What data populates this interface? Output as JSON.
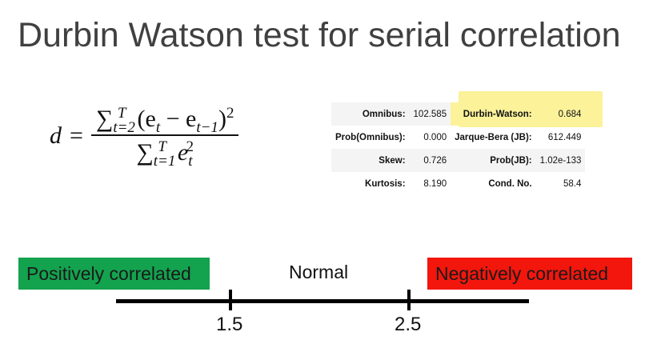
{
  "title": "Durbin Watson test for serial correlation",
  "formula": {
    "lhs": "d",
    "eq": "=",
    "num_sum_low": "t=2",
    "num_sum_high": "T",
    "num_expr_a": "(e",
    "num_expr_a_sub": "t",
    "num_minus": " − e",
    "num_expr_b_sub": "t−1",
    "num_close": ")",
    "num_pow": "2",
    "den_sum_low": "t=1",
    "den_sum_high": "T",
    "den_e": "e",
    "den_sub": "t",
    "den_pow": "2"
  },
  "stats": {
    "rows": [
      {
        "k1": "Omnibus:",
        "v1": "102.585",
        "k2": "Durbin-Watson:",
        "v2": "0.684"
      },
      {
        "k1": "Prob(Omnibus):",
        "v1": "0.000",
        "k2": "Jarque-Bera (JB):",
        "v2": "612.449"
      },
      {
        "k1": "Skew:",
        "v1": "0.726",
        "k2": "Prob(JB):",
        "v2": "1.02e-133"
      },
      {
        "k1": "Kurtosis:",
        "v1": "8.190",
        "k2": "Cond. No.",
        "v2": "58.4"
      }
    ],
    "highlight_color": "#fbf29a"
  },
  "scale": {
    "positive_label": "Positively correlated",
    "normal_label": "Normal",
    "negative_label": "Negatively correlated",
    "tick_low": "1.5",
    "tick_high": "2.5",
    "positive_color": "#13a24e",
    "negative_color": "#f2160c"
  }
}
